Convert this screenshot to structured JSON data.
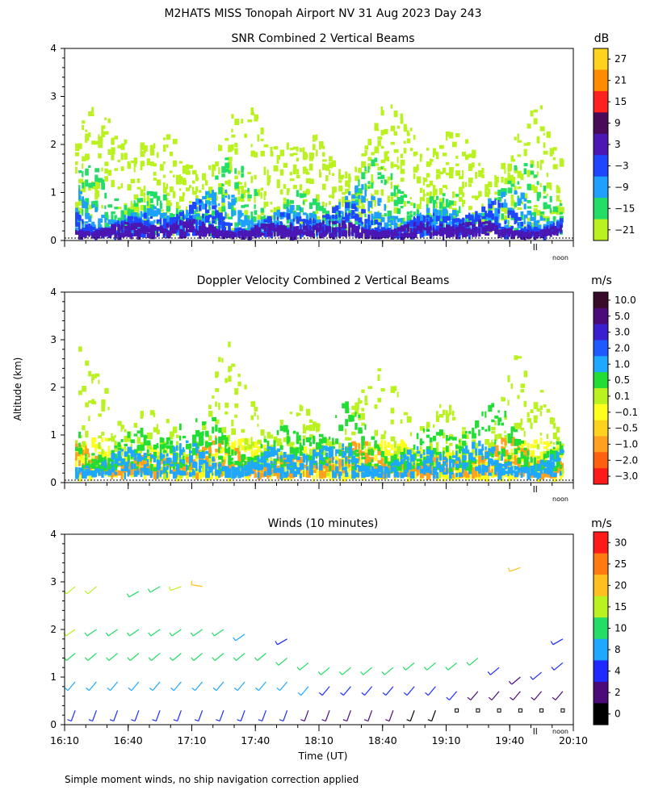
{
  "page": {
    "title": "M2HATS MISS Tonopah Airport NV  31 Aug 2023 Day 243",
    "y_axis_label": "Altitude (km)",
    "x_axis_label": "Time (UT)",
    "footnote": "Simple moment winds, no ship navigation correction applied",
    "noon_marker": "noon"
  },
  "chart_data": [
    {
      "type": "heatmap",
      "title": "SNR Combined 2 Vertical Beams",
      "unit": "dB",
      "ylim": [
        0,
        4
      ],
      "yticks": [
        "0",
        "1",
        "2",
        "3",
        "4"
      ],
      "xlim_minutes_ut": [
        970,
        1210
      ],
      "colorbar": {
        "labels": [
          "27",
          "21",
          "15",
          "9",
          "3",
          "−3",
          "−9",
          "−15",
          "−21"
        ],
        "colors": [
          "#ffd21e",
          "#ff8c00",
          "#ff2020",
          "#4a0a5a",
          "#4a17b5",
          "#1e46ff",
          "#1ea0ff",
          "#22dd66",
          "#b9f21e"
        ]
      },
      "layers": [
        {
          "label": "−21 to −15 dB",
          "color": "#b9f21e",
          "alt_km": [
            0.2,
            3.0
          ]
        },
        {
          "label": "−15 to −9 dB",
          "color": "#22dd66",
          "alt_km": [
            0.2,
            1.8
          ]
        },
        {
          "label": "−9 to −3 dB",
          "color": "#1ea0ff",
          "alt_km": [
            0.2,
            1.2
          ]
        },
        {
          "label": "−3 to 3 dB",
          "color": "#1e46ff",
          "alt_km": [
            0.15,
            0.9
          ]
        },
        {
          "label": "3 to 9 dB",
          "color": "#4a17b5",
          "alt_km": [
            0.15,
            0.5
          ]
        }
      ]
    },
    {
      "type": "heatmap",
      "title": "Doppler Velocity Combined 2 Vertical Beams",
      "unit": "m/s",
      "ylim": [
        0,
        4
      ],
      "yticks": [
        "0",
        "1",
        "2",
        "3",
        "4"
      ],
      "xlim_minutes_ut": [
        970,
        1210
      ],
      "colorbar": {
        "labels": [
          "10.0",
          "5.0",
          "3.0",
          "2.0",
          "1.0",
          "0.5",
          "0.1",
          "−0.1",
          "−0.5",
          "−1.0",
          "−2.0",
          "−3.0"
        ],
        "colors": [
          "#3a0a2a",
          "#4b0a7a",
          "#3a1fd0",
          "#1e5aff",
          "#1ea8ff",
          "#22dd33",
          "#b9f21e",
          "#ffff1e",
          "#ffd21e",
          "#ffa01e",
          "#ff6010",
          "#ff1a1a"
        ]
      },
      "layers": [
        {
          "label": "−0.1 to 0.1 m/s",
          "color": "#ffff1e",
          "alt_km": [
            0.15,
            1.0
          ]
        },
        {
          "label": "0.1 to 0.5 m/s",
          "color": "#b9f21e",
          "alt_km": [
            0.2,
            3.0
          ]
        },
        {
          "label": "−1.0 to −0.5 m/s",
          "color": "#ffa01e",
          "alt_km": [
            0.2,
            1.0
          ]
        },
        {
          "label": "0.5 to 1.0 m/s",
          "color": "#22dd33",
          "alt_km": [
            0.3,
            1.8
          ]
        },
        {
          "label": "1.0 to 2.0 m/s",
          "color": "#1ea8ff",
          "alt_km": [
            0.2,
            1.0
          ]
        }
      ]
    },
    {
      "type": "scatter",
      "title": "Winds (10 minutes)",
      "unit": "m/s",
      "ylim": [
        0,
        4
      ],
      "yticks": [
        "0",
        "1",
        "2",
        "3",
        "4"
      ],
      "xlim_minutes_ut": [
        970,
        1210
      ],
      "xticks": [
        "16:10",
        "16:40",
        "17:10",
        "17:40",
        "18:10",
        "18:40",
        "19:10",
        "19:40",
        "20:10"
      ],
      "colorbar": {
        "labels": [
          "30",
          "25",
          "20",
          "15",
          "10",
          "8",
          "4",
          "2",
          "0"
        ],
        "colors": [
          "#ff1a1a",
          "#ff7a10",
          "#ffbf1e",
          "#b9f21e",
          "#22dd66",
          "#1ea8ff",
          "#1e2aff",
          "#4b0a7a",
          "#000000"
        ]
      },
      "profiles": [
        {
          "time_min": 975,
          "levels": [
            {
              "alt_km": 0.3,
              "speed": 6,
              "dir": 200
            },
            {
              "alt_km": 0.9,
              "speed": 8,
              "dir": 220
            },
            {
              "alt_km": 1.5,
              "speed": 12,
              "dir": 230
            },
            {
              "alt_km": 2.0,
              "speed": 15,
              "dir": 235
            },
            {
              "alt_km": 2.9,
              "speed": 16,
              "dir": 230
            }
          ]
        },
        {
          "time_min": 985,
          "levels": [
            {
              "alt_km": 0.3,
              "speed": 6,
              "dir": 200
            },
            {
              "alt_km": 0.9,
              "speed": 8,
              "dir": 220
            },
            {
              "alt_km": 1.5,
              "speed": 12,
              "dir": 230
            },
            {
              "alt_km": 2.0,
              "speed": 14,
              "dir": 235
            },
            {
              "alt_km": 2.9,
              "speed": 15,
              "dir": 230
            }
          ]
        },
        {
          "time_min": 995,
          "levels": [
            {
              "alt_km": 0.3,
              "speed": 5,
              "dir": 200
            },
            {
              "alt_km": 0.9,
              "speed": 8,
              "dir": 220
            },
            {
              "alt_km": 1.5,
              "speed": 11,
              "dir": 230
            },
            {
              "alt_km": 2.0,
              "speed": 13,
              "dir": 235
            }
          ]
        },
        {
          "time_min": 1005,
          "levels": [
            {
              "alt_km": 0.3,
              "speed": 6,
              "dir": 200
            },
            {
              "alt_km": 0.9,
              "speed": 9,
              "dir": 220
            },
            {
              "alt_km": 1.5,
              "speed": 12,
              "dir": 230
            },
            {
              "alt_km": 2.0,
              "speed": 14,
              "dir": 235
            },
            {
              "alt_km": 2.8,
              "speed": 13,
              "dir": 240
            }
          ]
        },
        {
          "time_min": 1015,
          "levels": [
            {
              "alt_km": 0.3,
              "speed": 6,
              "dir": 200
            },
            {
              "alt_km": 0.9,
              "speed": 9,
              "dir": 220
            },
            {
              "alt_km": 1.5,
              "speed": 12,
              "dir": 230
            },
            {
              "alt_km": 2.0,
              "speed": 14,
              "dir": 235
            },
            {
              "alt_km": 2.9,
              "speed": 14,
              "dir": 240
            }
          ]
        },
        {
          "time_min": 1025,
          "levels": [
            {
              "alt_km": 0.3,
              "speed": 6,
              "dir": 200
            },
            {
              "alt_km": 0.9,
              "speed": 9,
              "dir": 220
            },
            {
              "alt_km": 1.5,
              "speed": 12,
              "dir": 230
            },
            {
              "alt_km": 2.0,
              "speed": 14,
              "dir": 235
            },
            {
              "alt_km": 2.9,
              "speed": 16,
              "dir": 250
            }
          ]
        },
        {
          "time_min": 1035,
          "levels": [
            {
              "alt_km": 0.3,
              "speed": 6,
              "dir": 200
            },
            {
              "alt_km": 0.9,
              "speed": 9,
              "dir": 220
            },
            {
              "alt_km": 1.5,
              "speed": 12,
              "dir": 230
            },
            {
              "alt_km": 2.0,
              "speed": 14,
              "dir": 235
            },
            {
              "alt_km": 2.9,
              "speed": 22,
              "dir": 280
            }
          ]
        },
        {
          "time_min": 1045,
          "levels": [
            {
              "alt_km": 0.3,
              "speed": 6,
              "dir": 200
            },
            {
              "alt_km": 0.9,
              "speed": 9,
              "dir": 220
            },
            {
              "alt_km": 1.5,
              "speed": 12,
              "dir": 230
            },
            {
              "alt_km": 2.0,
              "speed": 10,
              "dir": 235
            }
          ]
        },
        {
          "time_min": 1055,
          "levels": [
            {
              "alt_km": 0.3,
              "speed": 6,
              "dir": 200
            },
            {
              "alt_km": 0.9,
              "speed": 9,
              "dir": 220
            },
            {
              "alt_km": 1.5,
              "speed": 12,
              "dir": 230
            },
            {
              "alt_km": 1.9,
              "speed": 8,
              "dir": 235
            }
          ]
        },
        {
          "time_min": 1065,
          "levels": [
            {
              "alt_km": 0.3,
              "speed": 6,
              "dir": 200
            },
            {
              "alt_km": 0.9,
              "speed": 9,
              "dir": 220
            },
            {
              "alt_km": 1.5,
              "speed": 12,
              "dir": 230
            }
          ]
        },
        {
          "time_min": 1075,
          "levels": [
            {
              "alt_km": 0.3,
              "speed": 4,
              "dir": 200
            },
            {
              "alt_km": 0.9,
              "speed": 8,
              "dir": 220
            },
            {
              "alt_km": 1.4,
              "speed": 11,
              "dir": 230
            },
            {
              "alt_km": 1.8,
              "speed": 6,
              "dir": 240
            }
          ]
        },
        {
          "time_min": 1085,
          "levels": [
            {
              "alt_km": 0.3,
              "speed": 3,
              "dir": 200
            },
            {
              "alt_km": 0.8,
              "speed": 8,
              "dir": 220
            },
            {
              "alt_km": 1.3,
              "speed": 11,
              "dir": 230
            }
          ]
        },
        {
          "time_min": 1095,
          "levels": [
            {
              "alt_km": 0.3,
              "speed": 3,
              "dir": 200
            },
            {
              "alt_km": 0.8,
              "speed": 7,
              "dir": 220
            },
            {
              "alt_km": 1.2,
              "speed": 10,
              "dir": 230
            }
          ]
        },
        {
          "time_min": 1105,
          "levels": [
            {
              "alt_km": 0.3,
              "speed": 2,
              "dir": 200
            },
            {
              "alt_km": 0.8,
              "speed": 7,
              "dir": 220
            },
            {
              "alt_km": 1.2,
              "speed": 11,
              "dir": 230
            }
          ]
        },
        {
          "time_min": 1115,
          "levels": [
            {
              "alt_km": 0.3,
              "speed": 2,
              "dir": 200
            },
            {
              "alt_km": 0.8,
              "speed": 6,
              "dir": 220
            },
            {
              "alt_km": 1.2,
              "speed": 11,
              "dir": 230
            }
          ]
        },
        {
          "time_min": 1125,
          "levels": [
            {
              "alt_km": 0.3,
              "speed": 2,
              "dir": 200
            },
            {
              "alt_km": 0.8,
              "speed": 6,
              "dir": 220
            },
            {
              "alt_km": 1.2,
              "speed": 11,
              "dir": 230
            }
          ]
        },
        {
          "time_min": 1135,
          "levels": [
            {
              "alt_km": 0.3,
              "speed": 1,
              "dir": 200
            },
            {
              "alt_km": 0.8,
              "speed": 5,
              "dir": 220
            },
            {
              "alt_km": 1.3,
              "speed": 11,
              "dir": 230
            }
          ]
        },
        {
          "time_min": 1145,
          "levels": [
            {
              "alt_km": 0.3,
              "speed": 1,
              "dir": 200
            },
            {
              "alt_km": 0.8,
              "speed": 5,
              "dir": 220
            },
            {
              "alt_km": 1.3,
              "speed": 12,
              "dir": 230
            }
          ]
        },
        {
          "time_min": 1155,
          "levels": [
            {
              "alt_km": 0.3,
              "speed": 0,
              "dir": 200
            },
            {
              "alt_km": 0.7,
              "speed": 4,
              "dir": 220
            },
            {
              "alt_km": 1.3,
              "speed": 11,
              "dir": 230
            }
          ]
        },
        {
          "time_min": 1165,
          "levels": [
            {
              "alt_km": 0.3,
              "speed": 0,
              "dir": 200
            },
            {
              "alt_km": 0.7,
              "speed": 3,
              "dir": 220
            },
            {
              "alt_km": 1.4,
              "speed": 12,
              "dir": 230
            }
          ]
        },
        {
          "time_min": 1175,
          "levels": [
            {
              "alt_km": 0.3,
              "speed": 0,
              "dir": 200
            },
            {
              "alt_km": 0.7,
              "speed": 3,
              "dir": 220
            },
            {
              "alt_km": 1.2,
              "speed": 4,
              "dir": 230
            }
          ]
        },
        {
          "time_min": 1185,
          "levels": [
            {
              "alt_km": 0.3,
              "speed": 0,
              "dir": 200
            },
            {
              "alt_km": 0.7,
              "speed": 2,
              "dir": 220
            },
            {
              "alt_km": 1.0,
              "speed": 3,
              "dir": 230
            },
            {
              "alt_km": 3.3,
              "speed": 20,
              "dir": 250
            }
          ]
        },
        {
          "time_min": 1195,
          "levels": [
            {
              "alt_km": 0.3,
              "speed": 0,
              "dir": 200
            },
            {
              "alt_km": 0.7,
              "speed": 2,
              "dir": 220
            },
            {
              "alt_km": 1.1,
              "speed": 4,
              "dir": 230
            }
          ]
        },
        {
          "time_min": 1205,
          "levels": [
            {
              "alt_km": 0.3,
              "speed": 0,
              "dir": 200
            },
            {
              "alt_km": 0.7,
              "speed": 2,
              "dir": 220
            },
            {
              "alt_km": 1.3,
              "speed": 5,
              "dir": 230
            },
            {
              "alt_km": 1.8,
              "speed": 4,
              "dir": 240
            }
          ]
        }
      ]
    }
  ]
}
